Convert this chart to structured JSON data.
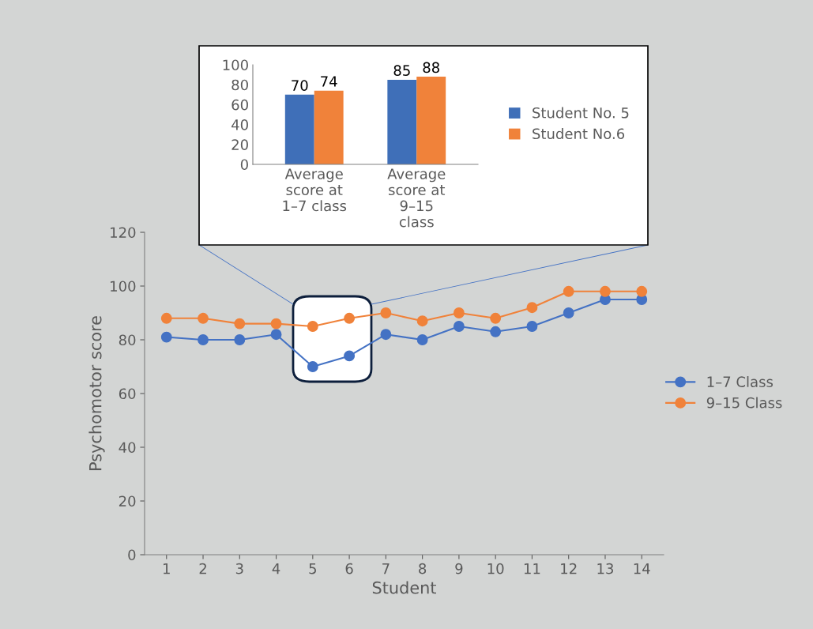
{
  "chart_data": [
    {
      "type": "bar",
      "categories": [
        "Average score at 1–7 class",
        "Average score at 9–15 class"
      ],
      "series": [
        {
          "name": "Student No. 5",
          "color": "#3f6fb8",
          "values": [
            70,
            85
          ]
        },
        {
          "name": "Student No.6",
          "color": "#f0823a",
          "values": [
            74,
            88
          ]
        }
      ],
      "ylim": [
        0,
        100
      ],
      "yticks": [
        0,
        20,
        40,
        60,
        80,
        100
      ],
      "data_labels": true,
      "legend": "right",
      "grid": false
    },
    {
      "type": "line",
      "xlabel": "Student",
      "ylabel": "Psychomotor score",
      "categories": [
        "1",
        "2",
        "3",
        "4",
        "5",
        "6",
        "7",
        "8",
        "9",
        "10",
        "11",
        "12",
        "13",
        "14"
      ],
      "series": [
        {
          "name": "1–7 Class",
          "color": "#4472c4",
          "values": [
            81,
            80,
            80,
            82,
            70,
            74,
            82,
            80,
            85,
            83,
            85,
            90,
            95,
            95
          ]
        },
        {
          "name": "9–15 Class",
          "color": "#f0823a",
          "values": [
            88,
            88,
            86,
            86,
            85,
            88,
            90,
            87,
            90,
            88,
            92,
            98,
            98,
            98
          ]
        }
      ],
      "ylim": [
        0,
        120
      ],
      "yticks": [
        0,
        20,
        40,
        60,
        80,
        100,
        120
      ],
      "marker": "circle",
      "line_style": "solid",
      "legend": "right",
      "grid": false
    }
  ]
}
